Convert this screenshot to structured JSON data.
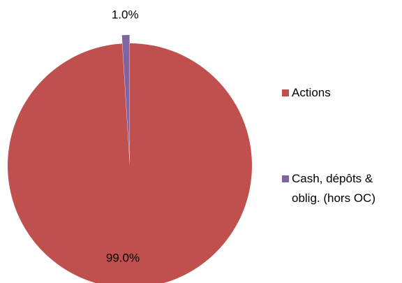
{
  "chart_data": {
    "type": "pie",
    "categories": [
      "Actions",
      "Cash, dépôts & oblig. (hors OC)"
    ],
    "values": [
      99,
      1
    ],
    "value_labels": [
      "99.0%",
      "1.0%"
    ],
    "colors": [
      "#c0504d",
      "#8064a2"
    ],
    "legend": "right"
  }
}
